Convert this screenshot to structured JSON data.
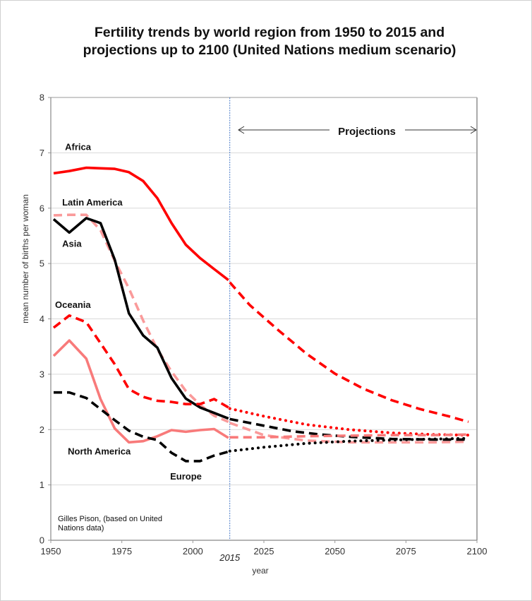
{
  "chart_data": {
    "type": "line",
    "title": [
      "Fertility trends by world region from 1950 to 2015 and",
      "projections up to 2100 (United Nations medium scenario)"
    ],
    "xlabel": "year",
    "ylabel": "mean number of births per woman",
    "xlim": [
      1950,
      2100
    ],
    "ylim": [
      0,
      8
    ],
    "xticks": [
      1950,
      1975,
      2000,
      2025,
      2050,
      2075,
      2100
    ],
    "xtick_labels": [
      "1950",
      "1975",
      "2000",
      "2025",
      "2050",
      "2075",
      "2100"
    ],
    "yticks": [
      0,
      1,
      2,
      3,
      4,
      5,
      6,
      7,
      8
    ],
    "ytick_labels": [
      "0",
      "1",
      "2",
      "3",
      "4",
      "5",
      "6",
      "7",
      "8"
    ],
    "grid": "horizontal",
    "divider": {
      "year": 2013,
      "label": "2015",
      "color": "#4a7bc8"
    },
    "projections_label": "Projections",
    "source_note": [
      "Gilles Pison, (based on United",
      "Nations data)"
    ],
    "colors": {
      "red": "#ff0000",
      "black": "#000000",
      "pink": "#f87a7a",
      "pink_light": "#fa9a9a"
    },
    "series": [
      {
        "name": "Africa",
        "color": "#ff0000",
        "style_hist": "solid",
        "style_proj": "dashed",
        "label_pos": {
          "year": 1955,
          "value": 7.05
        },
        "hist_x": [
          1951,
          1956.5,
          1962.5,
          1967.5,
          1972.5,
          1977.5,
          1982.5,
          1987.5,
          1992.5,
          1997.5,
          2002.5,
          2007.5,
          2012.5
        ],
        "hist_y": [
          6.63,
          6.67,
          6.73,
          6.72,
          6.71,
          6.65,
          6.49,
          6.18,
          5.73,
          5.34,
          5.1,
          4.9,
          4.7
        ],
        "proj_x": [
          2013,
          2020,
          2030,
          2040,
          2050,
          2060,
          2070,
          2080,
          2090,
          2097
        ],
        "proj_y": [
          4.66,
          4.25,
          3.8,
          3.37,
          3.01,
          2.74,
          2.53,
          2.37,
          2.24,
          2.14
        ]
      },
      {
        "name": "Latin America",
        "color": "#fa9a9a",
        "style_hist": "dashed",
        "style_proj": "dashed",
        "label_pos": {
          "year": 1954,
          "value": 6.05
        },
        "hist_x": [
          1951,
          1956.5,
          1962.5,
          1967.5,
          1972.5,
          1977.5,
          1982.5,
          1987.5,
          1992.5,
          1997.5,
          2002.5,
          2007.5,
          2012.5
        ],
        "hist_y": [
          5.87,
          5.88,
          5.88,
          5.6,
          5.05,
          4.55,
          3.97,
          3.45,
          3.05,
          2.7,
          2.45,
          2.25,
          2.14
        ],
        "proj_x": [
          2013,
          2025,
          2040,
          2055,
          2070,
          2085,
          2097
        ],
        "proj_y": [
          2.12,
          1.9,
          1.8,
          1.77,
          1.77,
          1.77,
          1.78
        ]
      },
      {
        "name": "Asia",
        "color": "#000000",
        "style_hist": "solid",
        "style_proj": "dashed",
        "label_pos": {
          "year": 1954,
          "value": 5.3
        },
        "hist_x": [
          1951,
          1956.5,
          1962.5,
          1967.5,
          1972.5,
          1977.5,
          1982.5,
          1987.5,
          1992.5,
          1997.5,
          2002.5,
          2007.5,
          2012.5
        ],
        "hist_y": [
          5.8,
          5.56,
          5.82,
          5.73,
          5.07,
          4.1,
          3.7,
          3.48,
          2.93,
          2.56,
          2.4,
          2.3,
          2.2
        ],
        "proj_x": [
          2013,
          2025,
          2035,
          2045,
          2055,
          2070,
          2085,
          2097
        ],
        "proj_y": [
          2.19,
          2.07,
          1.97,
          1.91,
          1.87,
          1.83,
          1.82,
          1.82
        ]
      },
      {
        "name": "Oceania",
        "color": "#ff0000",
        "style_hist": "dashed",
        "style_proj": "dotted",
        "label_pos": {
          "year": 1951.5,
          "value": 4.2
        },
        "hist_x": [
          1951,
          1956.5,
          1962.5,
          1967.5,
          1972.5,
          1977.5,
          1982.5,
          1987.5,
          1992.5,
          1997.5,
          2002.5,
          2007.5,
          2012.5
        ],
        "hist_y": [
          3.84,
          4.06,
          3.94,
          3.56,
          3.18,
          2.73,
          2.59,
          2.52,
          2.5,
          2.46,
          2.46,
          2.55,
          2.4
        ],
        "proj_x": [
          2013,
          2025,
          2040,
          2055,
          2070,
          2085,
          2097
        ],
        "proj_y": [
          2.38,
          2.24,
          2.09,
          2.0,
          1.94,
          1.91,
          1.9
        ]
      },
      {
        "name": "North America",
        "color": "#f87a7a",
        "style_hist": "solid",
        "style_proj": "dashed",
        "label_pos": {
          "year": 1956,
          "value": 1.55
        },
        "hist_x": [
          1951,
          1956.5,
          1962.5,
          1967.5,
          1972.5,
          1977.5,
          1982.5,
          1987.5,
          1992.5,
          1997.5,
          2002.5,
          2007.5,
          2012.5
        ],
        "hist_y": [
          3.33,
          3.61,
          3.28,
          2.55,
          2.02,
          1.77,
          1.79,
          1.88,
          1.99,
          1.96,
          1.99,
          2.01,
          1.85
        ],
        "proj_x": [
          2013,
          2025,
          2040,
          2055,
          2070,
          2085,
          2097
        ],
        "proj_y": [
          1.86,
          1.86,
          1.88,
          1.89,
          1.9,
          1.9,
          1.91
        ]
      },
      {
        "name": "Europe",
        "color": "#000000",
        "style_hist": "dashed",
        "style_proj": "dotted",
        "label_pos": {
          "year": 1992,
          "value": 1.1
        },
        "hist_x": [
          1951,
          1956.5,
          1962.5,
          1967.5,
          1972.5,
          1977.5,
          1982.5,
          1987.5,
          1992.5,
          1997.5,
          2002.5,
          2007.5,
          2012.5
        ],
        "hist_y": [
          2.67,
          2.67,
          2.57,
          2.37,
          2.17,
          1.98,
          1.87,
          1.81,
          1.58,
          1.43,
          1.43,
          1.53,
          1.6
        ],
        "proj_x": [
          2013,
          2025,
          2040,
          2055,
          2070,
          2085,
          2097
        ],
        "proj_y": [
          1.61,
          1.68,
          1.75,
          1.79,
          1.81,
          1.83,
          1.84
        ]
      }
    ]
  }
}
